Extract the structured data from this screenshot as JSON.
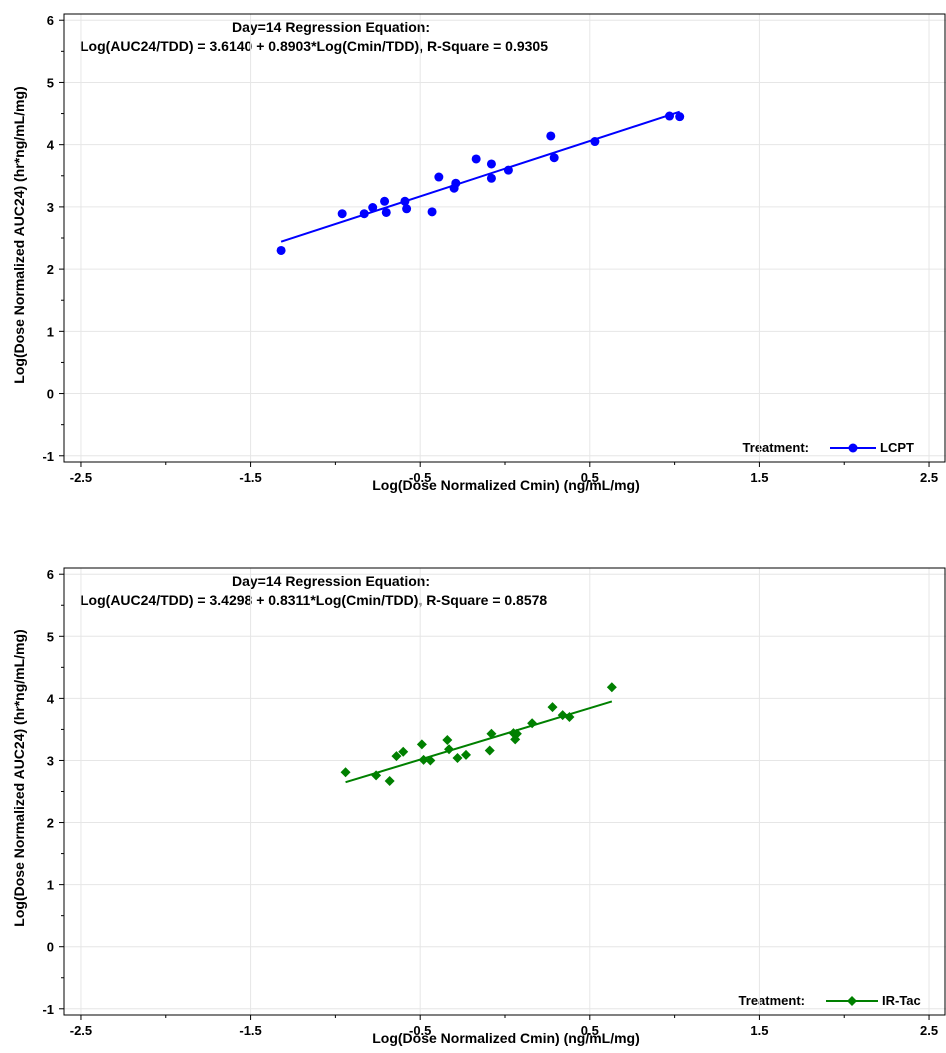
{
  "chart_data": [
    {
      "type": "scatter",
      "equation_title": "Day=14 Regression Equation:",
      "equation": "Log(AUC24/TDD) = 3.6140 + 0.8903*Log(Cmin/TDD), R-Square = 0.9305",
      "xlabel": "Log(Dose Normalized Cmin) (ng/mL/mg)",
      "ylabel": "Log(Dose Normalized AUC24) (hr*ng/mL/mg)",
      "xlim": [
        -2.6,
        2.6
      ],
      "ylim": [
        -1.1,
        6.1
      ],
      "xticks": [
        "-2.5",
        "-1.5",
        "-0.5",
        "0.5",
        "1.5",
        "2.5"
      ],
      "yticks": [
        "-1",
        "0",
        "1",
        "2",
        "3",
        "4",
        "5",
        "6"
      ],
      "legend_title": "Treatment:",
      "legend_position": "bottom-right",
      "grid": true,
      "series": [
        {
          "name": "LCPT",
          "color": "#0000ff",
          "marker": "circle",
          "x": [
            -1.32,
            -0.96,
            -0.83,
            -0.78,
            -0.71,
            -0.7,
            -0.59,
            -0.58,
            -0.43,
            -0.39,
            -0.3,
            -0.29,
            -0.17,
            -0.08,
            -0.08,
            0.02,
            0.27,
            0.29,
            0.53,
            0.97,
            1.03
          ],
          "y": [
            2.3,
            2.89,
            2.89,
            2.99,
            3.09,
            2.91,
            3.09,
            2.97,
            2.92,
            3.48,
            3.3,
            3.38,
            3.77,
            3.69,
            3.46,
            3.59,
            4.14,
            3.79,
            4.05,
            4.46,
            4.45
          ]
        }
      ],
      "fit_line": {
        "x": [
          -1.32,
          1.03
        ],
        "y": [
          2.44,
          4.53
        ]
      }
    },
    {
      "type": "scatter",
      "equation_title": "Day=14 Regression Equation:",
      "equation": "Log(AUC24/TDD) = 3.4298 + 0.8311*Log(Cmin/TDD), R-Square = 0.8578",
      "xlabel": "Log(Dose Normalized Cmin) (ng/mL/mg)",
      "ylabel": "Log(Dose Normalized AUC24) (hr*ng/mL/mg)",
      "xlim": [
        -2.6,
        2.6
      ],
      "ylim": [
        -1.1,
        6.1
      ],
      "xticks": [
        "-2.5",
        "-1.5",
        "-0.5",
        "0.5",
        "1.5",
        "2.5"
      ],
      "yticks": [
        "-1",
        "0",
        "1",
        "2",
        "3",
        "4",
        "5",
        "6"
      ],
      "legend_title": "Treatment:",
      "legend_position": "bottom-right",
      "grid": true,
      "series": [
        {
          "name": "IR-Tac",
          "color": "#008000",
          "marker": "diamond",
          "x": [
            -0.94,
            -0.76,
            -0.68,
            -0.64,
            -0.6,
            -0.49,
            -0.48,
            -0.44,
            -0.34,
            -0.33,
            -0.28,
            -0.23,
            -0.08,
            -0.09,
            0.05,
            0.06,
            0.07,
            0.16,
            0.28,
            0.34,
            0.38,
            0.63
          ],
          "y": [
            2.81,
            2.76,
            2.67,
            3.07,
            3.14,
            3.26,
            3.01,
            3.0,
            3.33,
            3.18,
            3.04,
            3.09,
            3.43,
            3.16,
            3.44,
            3.34,
            3.43,
            3.6,
            3.86,
            3.73,
            3.7,
            4.18
          ]
        }
      ],
      "fit_line": {
        "x": [
          -0.94,
          0.63
        ],
        "y": [
          2.65,
          3.95
        ]
      }
    }
  ]
}
